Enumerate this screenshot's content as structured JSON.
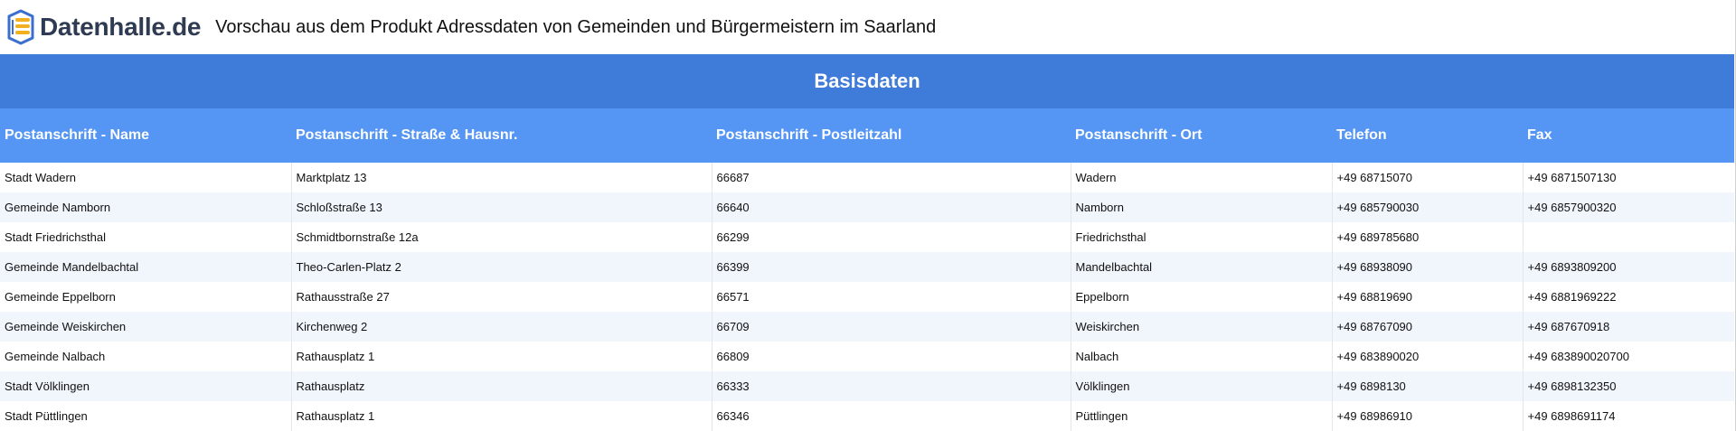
{
  "header": {
    "logo_text": "Datenhalle.de",
    "logo_icon": "database-stack-icon",
    "title": "Vorschau aus dem Produkt Adressdaten von Gemeinden und Bürgermeistern im Saarland"
  },
  "colors": {
    "group_header": "#3f7bd8",
    "column_header": "#5596f5",
    "row_alt": "#f1f5fc",
    "logo_blue": "#3a6fd0",
    "logo_yellow": "#f2b01e",
    "logo_text": "#2f3b52"
  },
  "table": {
    "group_label": "Basisdaten",
    "columns": [
      "Postanschrift - Name",
      "Postanschrift - Straße & Hausnr.",
      "Postanschrift - Postleitzahl",
      "Postanschrift - Ort",
      "Telefon",
      "Fax"
    ],
    "rows": [
      [
        "Stadt Wadern",
        "Marktplatz 13",
        "66687",
        "Wadern",
        "+49 68715070",
        "+49 6871507130"
      ],
      [
        "Gemeinde Namborn",
        "Schloßstraße 13",
        "66640",
        "Namborn",
        "+49 685790030",
        "+49 6857900320"
      ],
      [
        "Stadt Friedrichsthal",
        "Schmidtbornstraße 12a",
        "66299",
        "Friedrichsthal",
        "+49 689785680",
        ""
      ],
      [
        "Gemeinde Mandelbachtal",
        "Theo-Carlen-Platz 2",
        "66399",
        "Mandelbachtal",
        "+49 68938090",
        "+49 6893809200"
      ],
      [
        "Gemeinde Eppelborn",
        "Rathausstraße 27",
        "66571",
        "Eppelborn",
        "+49 68819690",
        "+49 6881969222"
      ],
      [
        "Gemeinde Weiskirchen",
        "Kirchenweg 2",
        "66709",
        "Weiskirchen",
        "+49 68767090",
        "+49 687670918"
      ],
      [
        "Gemeinde Nalbach",
        "Rathausplatz 1",
        "66809",
        "Nalbach",
        "+49 683890020",
        "+49 683890020700"
      ],
      [
        "Stadt Völklingen",
        "Rathausplatz",
        "66333",
        "Völklingen",
        "+49 6898130",
        "+49 6898132350"
      ],
      [
        "Stadt Püttlingen",
        "Rathausplatz 1",
        "66346",
        "Püttlingen",
        "+49 68986910",
        "+49 6898691174"
      ]
    ]
  }
}
